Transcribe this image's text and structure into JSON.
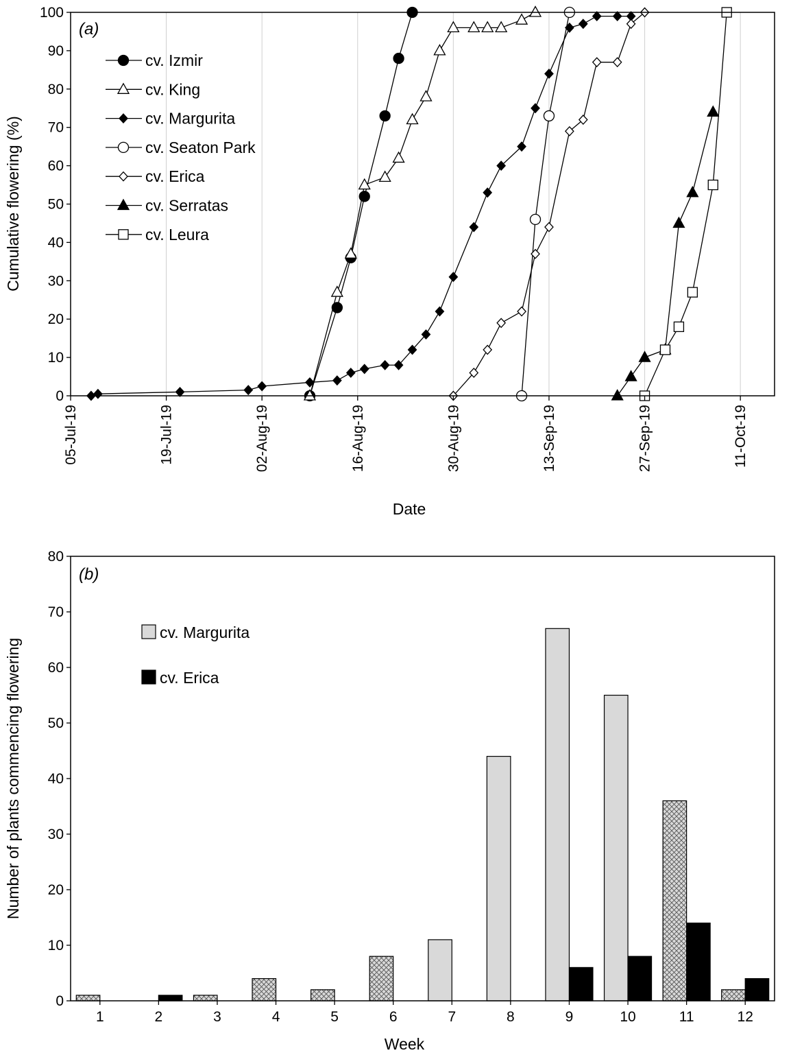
{
  "chart_data": [
    {
      "type": "line",
      "panel_label": "(a)",
      "xlabel": "Date",
      "ylabel": "Cumulative flowering (%)",
      "xlim": [
        "2019-07-05",
        "2019-10-16"
      ],
      "ylim": [
        0,
        100
      ],
      "x_ticks": [
        "2019-07-05",
        "2019-07-19",
        "2019-08-02",
        "2019-08-16",
        "2019-08-30",
        "2019-09-13",
        "2019-09-27",
        "2019-10-11"
      ],
      "x_tick_labels": [
        "05-Jul-19",
        "19-Jul-19",
        "02-Aug-19",
        "16-Aug-19",
        "30-Aug-19",
        "13-Sep-19",
        "27-Sep-19",
        "11-Oct-19"
      ],
      "y_ticks": [
        0,
        10,
        20,
        30,
        40,
        50,
        60,
        70,
        80,
        90,
        100
      ],
      "y_tick_labels": [
        "0",
        "10",
        "20",
        "30",
        "40",
        "50",
        "60",
        "70",
        "80",
        "90",
        "100"
      ],
      "grid": "vertical",
      "legend_position": "top-left",
      "series": [
        {
          "name": "cv. Izmir",
          "marker": "circle",
          "fill": "filled",
          "x": [
            "2019-08-09",
            "2019-08-13",
            "2019-08-15",
            "2019-08-17",
            "2019-08-20",
            "2019-08-22",
            "2019-08-24"
          ],
          "y": [
            0,
            23,
            36,
            52,
            73,
            88,
            100
          ]
        },
        {
          "name": "cv. King",
          "marker": "triangle",
          "fill": "open",
          "x": [
            "2019-08-09",
            "2019-08-13",
            "2019-08-15",
            "2019-08-17",
            "2019-08-20",
            "2019-08-22",
            "2019-08-24",
            "2019-08-26",
            "2019-08-28",
            "2019-08-30",
            "2019-09-02",
            "2019-09-04",
            "2019-09-06",
            "2019-09-09",
            "2019-09-11"
          ],
          "y": [
            0,
            27,
            37,
            55,
            57,
            62,
            72,
            78,
            90,
            96,
            96,
            96,
            96,
            98,
            100
          ]
        },
        {
          "name": "cv. Margurita",
          "marker": "diamond",
          "fill": "filled",
          "x": [
            "2019-07-08",
            "2019-07-09",
            "2019-07-21",
            "2019-07-31",
            "2019-08-02",
            "2019-08-09",
            "2019-08-13",
            "2019-08-15",
            "2019-08-17",
            "2019-08-20",
            "2019-08-22",
            "2019-08-24",
            "2019-08-26",
            "2019-08-28",
            "2019-08-30",
            "2019-09-02",
            "2019-09-04",
            "2019-09-06",
            "2019-09-09",
            "2019-09-11",
            "2019-09-13",
            "2019-09-16",
            "2019-09-18",
            "2019-09-20",
            "2019-09-23",
            "2019-09-25"
          ],
          "y": [
            0,
            0.5,
            1,
            1.5,
            2.5,
            3.5,
            4,
            6,
            7,
            8,
            8,
            12,
            16,
            22,
            31,
            44,
            53,
            60,
            65,
            75,
            84,
            96,
            97,
            99,
            99,
            99
          ]
        },
        {
          "name": "cv. Seaton Park",
          "marker": "circle",
          "fill": "open",
          "x": [
            "2019-09-09",
            "2019-09-11",
            "2019-09-13",
            "2019-09-16"
          ],
          "y": [
            0,
            46,
            73,
            100
          ]
        },
        {
          "name": "cv. Erica",
          "marker": "diamond",
          "fill": "open",
          "x": [
            "2019-08-30",
            "2019-09-02",
            "2019-09-04",
            "2019-09-06",
            "2019-09-09",
            "2019-09-11",
            "2019-09-13",
            "2019-09-16",
            "2019-09-18",
            "2019-09-20",
            "2019-09-23",
            "2019-09-25",
            "2019-09-27"
          ],
          "y": [
            0,
            6,
            12,
            19,
            22,
            37,
            44,
            69,
            72,
            87,
            87,
            97,
            100
          ]
        },
        {
          "name": "cv. Serratas",
          "marker": "triangle",
          "fill": "filled",
          "x": [
            "2019-09-23",
            "2019-09-25",
            "2019-09-27",
            "2019-09-30",
            "2019-10-02",
            "2019-10-04",
            "2019-10-07"
          ],
          "y": [
            0,
            5,
            10,
            12,
            45,
            53,
            74
          ]
        },
        {
          "name": "cv. Leura",
          "marker": "square",
          "fill": "open",
          "x": [
            "2019-09-27",
            "2019-09-30",
            "2019-10-02",
            "2019-10-04",
            "2019-10-07",
            "2019-10-09"
          ],
          "y": [
            0,
            12,
            18,
            27,
            55,
            100
          ]
        }
      ]
    },
    {
      "type": "bar",
      "panel_label": "(b)",
      "xlabel": "Week",
      "ylabel": "Number of plants commencing flowering",
      "categories": [
        "1",
        "2",
        "3",
        "4",
        "5",
        "6",
        "7",
        "8",
        "9",
        "10",
        "11",
        "12"
      ],
      "ylim": [
        0,
        80
      ],
      "y_ticks": [
        0,
        10,
        20,
        30,
        40,
        50,
        60,
        70,
        80
      ],
      "y_tick_labels": [
        "0",
        "10",
        "20",
        "30",
        "40",
        "50",
        "60",
        "70",
        "80"
      ],
      "grid": "none",
      "legend_position": "upper-left",
      "legend_note": "Hatched bars mark weeks where Margurita bar is drawn with a cross-hatch pattern",
      "hatched_weeks": [
        "1",
        "3",
        "4",
        "5",
        "6",
        "11",
        "12"
      ],
      "series": [
        {
          "name": "cv. Margurita",
          "color": "#d9d9d9",
          "values": [
            1,
            0,
            1,
            4,
            2,
            8,
            11,
            44,
            67,
            55,
            36,
            2
          ]
        },
        {
          "name": "cv. Erica",
          "color": "#000000",
          "values": [
            0,
            1,
            0,
            0,
            0,
            0,
            0,
            0,
            6,
            8,
            14,
            4
          ]
        }
      ]
    }
  ]
}
